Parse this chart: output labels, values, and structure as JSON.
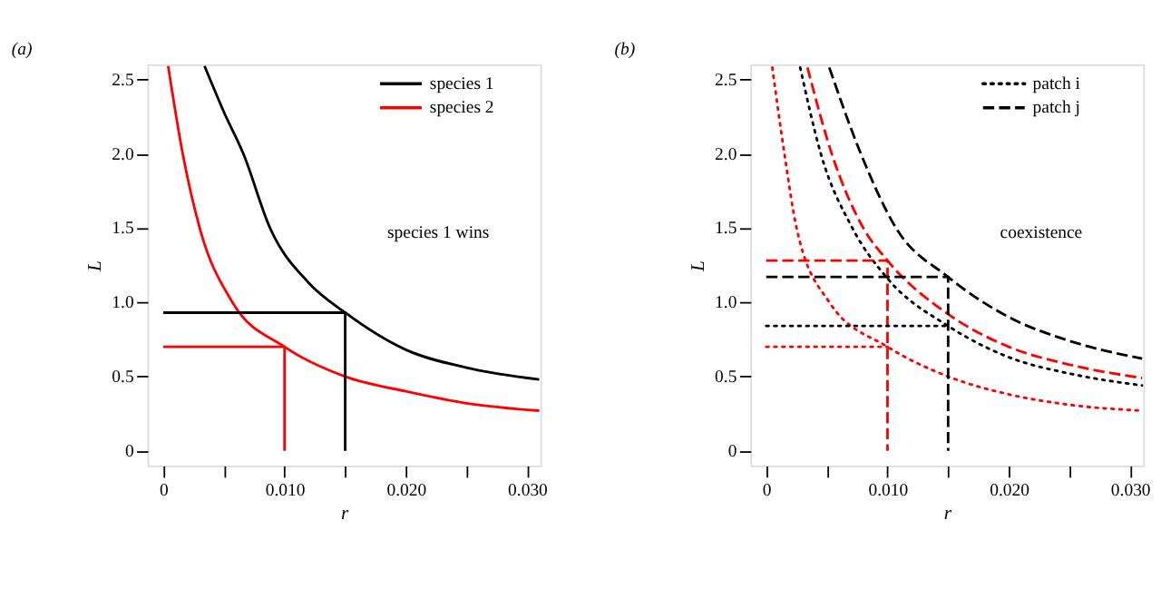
{
  "chart_data": [
    {
      "type": "line",
      "title": "(a)",
      "xlabel": "r",
      "ylabel": "L",
      "xlim": [
        -0.0013,
        0.0311
      ],
      "ylim": [
        -0.1,
        2.6
      ],
      "xticks": [
        0,
        {
          "value": 0.005,
          "label": null
        },
        {
          "value": 0.01,
          "label": "0.010"
        },
        {
          "value": 0.015,
          "label": null
        },
        {
          "value": 0.02,
          "label": "0.020"
        },
        {
          "value": 0.025,
          "label": null
        },
        {
          "value": 0.03,
          "label": "0.030"
        }
      ],
      "yticks": [
        0,
        {
          "value": 0.5,
          "label": "0.5"
        },
        {
          "value": 1,
          "label": "1.0"
        },
        {
          "value": 1.5,
          "label": "1.5"
        },
        {
          "value": 2,
          "label": "2.0"
        },
        {
          "value": 2.5,
          "label": "2.5"
        }
      ],
      "grid": false,
      "legend": "top right",
      "marker": "none",
      "annotations": [
        "species 1 wins"
      ],
      "series": [
        {
          "name": "species 1",
          "color": "#000000",
          "line_style": "solid",
          "x": [
            0.0034,
            0.005,
            0.0066,
            0.0088,
            0.012,
            0.015,
            0.02,
            0.025,
            0.031
          ],
          "values": [
            2.59,
            2.28,
            2.0,
            1.5,
            1.13,
            0.93,
            0.68,
            0.56,
            0.48
          ]
        },
        {
          "name": "species 2",
          "color": "#ff0000",
          "line_style": "solid",
          "x": [
            0.0004,
            0.0016,
            0.003,
            0.0057,
            0.01,
            0.015,
            0.02,
            0.025,
            0.031
          ],
          "values": [
            2.59,
            2.0,
            1.5,
            1.0,
            0.7,
            0.5,
            0.4,
            0.32,
            0.27
          ]
        },
        {
          "color": "#000000",
          "line_style": "solid",
          "x": [
            0,
            0.015,
            0.015
          ],
          "values": [
            0.93,
            0.93,
            0
          ]
        },
        {
          "color": "#ff0000",
          "line_style": "solid",
          "x": [
            0,
            0.01,
            0.01
          ],
          "values": [
            0.7,
            0.7,
            0
          ]
        }
      ]
    },
    {
      "type": "line",
      "title": "(b)",
      "xlabel": "r",
      "ylabel": "L",
      "xlim": [
        -0.0013,
        0.0311
      ],
      "ylim": [
        -0.1,
        2.6
      ],
      "xticks": [
        0,
        {
          "value": 0.005,
          "label": null
        },
        {
          "value": 0.01,
          "label": "0.010"
        },
        {
          "value": 0.015,
          "label": null
        },
        {
          "value": 0.02,
          "label": "0.020"
        },
        {
          "value": 0.025,
          "label": null
        },
        {
          "value": 0.03,
          "label": "0.030"
        }
      ],
      "yticks": [
        0,
        {
          "value": 0.5,
          "label": "0.5"
        },
        {
          "value": 1,
          "label": "1.0"
        },
        {
          "value": 1.5,
          "label": "1.5"
        },
        {
          "value": 2,
          "label": "2.0"
        },
        {
          "value": 2.5,
          "label": "2.5"
        }
      ],
      "grid": false,
      "legend": "top right",
      "marker": "none",
      "annotations": [
        "coexistence"
      ],
      "series": [
        {
          "name": "patch i",
          "color": "#000000",
          "line_style": "dotted",
          "x": [
            0.0028,
            0.0045,
            0.0071,
            0.01,
            0.015,
            0.02,
            0.025,
            0.031
          ],
          "values": [
            2.58,
            2.0,
            1.5,
            1.16,
            0.84,
            0.63,
            0.52,
            0.44
          ]
        },
        {
          "name": "patch j",
          "color": "#000000",
          "line_style": "dashed",
          "x": [
            0.0052,
            0.0078,
            0.0107,
            0.015,
            0.02,
            0.025,
            0.031
          ],
          "values": [
            2.58,
            2.0,
            1.5,
            1.17,
            0.9,
            0.74,
            0.62
          ]
        },
        {
          "color": "#ff0000",
          "line_style": "dashed",
          "x": [
            0.0034,
            0.0054,
            0.008,
            0.01,
            0.015,
            0.02,
            0.025,
            0.031
          ],
          "values": [
            2.58,
            2.0,
            1.5,
            1.28,
            0.92,
            0.7,
            0.58,
            0.49
          ]
        },
        {
          "color": "#ff0000",
          "line_style": "dotted",
          "x": [
            0.0005,
            0.0015,
            0.0025,
            0.0052,
            0.01,
            0.015,
            0.02,
            0.025,
            0.031
          ],
          "values": [
            2.58,
            2.0,
            1.5,
            1.0,
            0.7,
            0.5,
            0.38,
            0.31,
            0.27
          ]
        },
        {
          "color": "#ff0000",
          "line_style": "dashed",
          "x": [
            0,
            0.01,
            0.01
          ],
          "values": [
            1.28,
            1.28,
            0
          ]
        },
        {
          "color": "#000000",
          "line_style": "dashed",
          "x": [
            0,
            0.015,
            0.015
          ],
          "values": [
            1.17,
            1.17,
            0
          ]
        },
        {
          "color": "#000000",
          "line_style": "dotted",
          "x": [
            0,
            0.015
          ],
          "values": [
            0.84,
            0.84
          ]
        },
        {
          "color": "#ff0000",
          "line_style": "dotted",
          "x": [
            0,
            0.01
          ],
          "values": [
            0.7,
            0.7
          ]
        }
      ]
    }
  ]
}
